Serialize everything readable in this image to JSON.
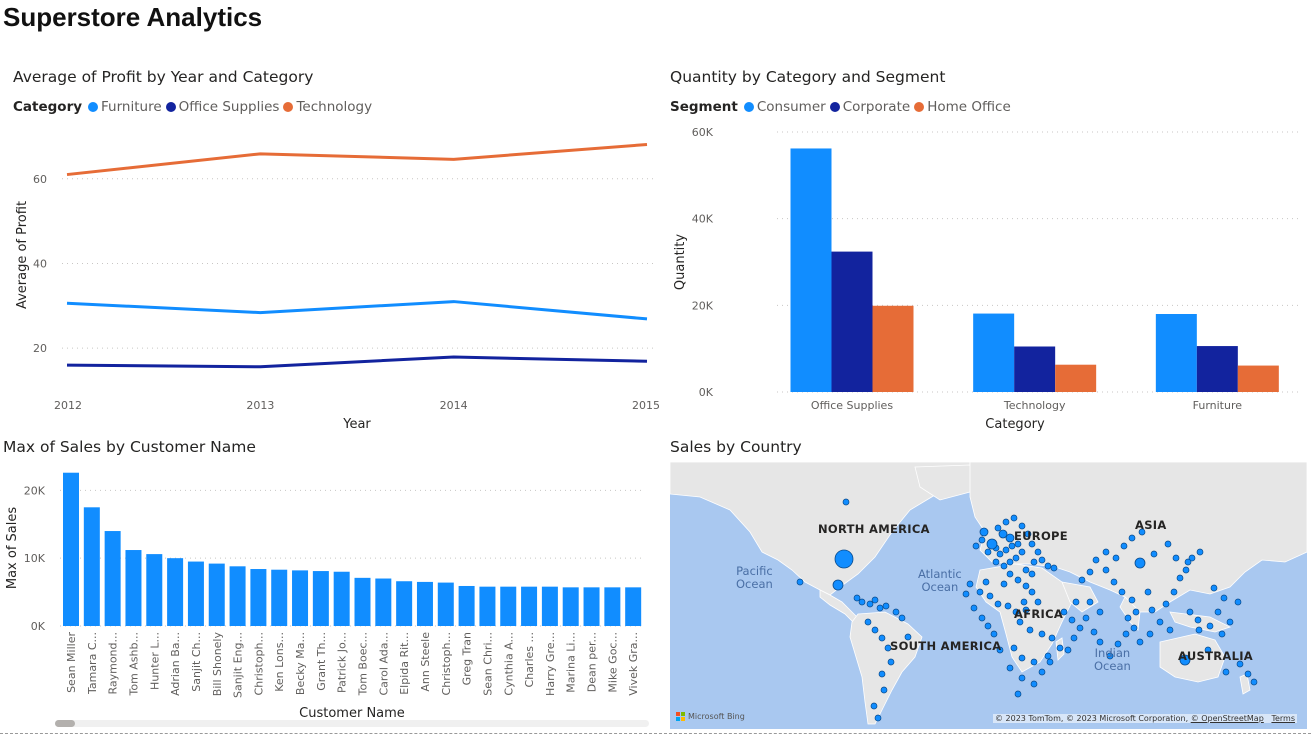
{
  "page": {
    "title": "Superstore Analytics"
  },
  "chart_data": [
    {
      "id": "profit_line",
      "type": "line",
      "title": "Average of Profit by Year and Category",
      "legend_title": "Category",
      "xlabel": "Year",
      "ylabel": "Average of Profit",
      "x": [
        "2012",
        "2013",
        "2014",
        "2015"
      ],
      "ylim": [
        12,
        72
      ],
      "yticks": [
        20,
        40,
        60
      ],
      "grid": true,
      "legend_position": "top-left",
      "series": [
        {
          "name": "Furniture",
          "color": "#118DFF",
          "values": [
            30.6,
            28.4,
            31.0,
            26.9
          ]
        },
        {
          "name": "Office Supplies",
          "color": "#12239E",
          "values": [
            16.0,
            15.6,
            17.9,
            16.9
          ]
        },
        {
          "name": "Technology",
          "color": "#E66C37",
          "values": [
            61.0,
            65.9,
            64.6,
            68.1
          ]
        }
      ]
    },
    {
      "id": "quantity_bar",
      "type": "bar",
      "title": "Quantity by Category and Segment",
      "legend_title": "Segment",
      "xlabel": "Category",
      "ylabel": "Quantity",
      "categories": [
        "Office Supplies",
        "Technology",
        "Furniture"
      ],
      "ylim": [
        0,
        60000
      ],
      "yticks": [
        0,
        20000,
        40000,
        60000
      ],
      "ytick_labels": [
        "0K",
        "20K",
        "40K",
        "60K"
      ],
      "grid": true,
      "legend_position": "top-left",
      "series": [
        {
          "name": "Consumer",
          "color": "#118DFF",
          "values": [
            56200,
            18100,
            18000
          ]
        },
        {
          "name": "Corporate",
          "color": "#12239E",
          "values": [
            32400,
            10500,
            10600
          ]
        },
        {
          "name": "Home Office",
          "color": "#E66C37",
          "values": [
            19900,
            6300,
            6100
          ]
        }
      ]
    },
    {
      "id": "sales_bar",
      "type": "bar",
      "title": "Max of Sales by Customer Name",
      "xlabel": "Customer Name",
      "ylabel": "Max of Sales",
      "ylim": [
        0,
        23000
      ],
      "yticks": [
        0,
        10000,
        20000
      ],
      "ytick_labels": [
        "0K",
        "10K",
        "20K"
      ],
      "grid": true,
      "color": "#118DFF",
      "categories": [
        "Sean Miller",
        "Tamara C...",
        "Raymond...",
        "Tom Ashb...",
        "Hunter L...",
        "Adrian Ba...",
        "Sanjit Ch...",
        "Bill Shonely",
        "Sanjit Eng...",
        "Christoph...",
        "Ken Lons...",
        "Becky Ma...",
        "Grant Th...",
        "Patrick Jo...",
        "Tom Boec...",
        "Carol Ada...",
        "Elpida Rit...",
        "Ann Steele",
        "Christoph...",
        "Greg Tran",
        "Sean Chri...",
        "Cynthia A...",
        "Charles ...",
        "Harry Gre...",
        "Marina Li...",
        "Dean per...",
        "Mike Goc...",
        "Vivek Gra..."
      ],
      "values": [
        22600,
        17500,
        14000,
        11200,
        10600,
        10000,
        9500,
        9200,
        8800,
        8400,
        8300,
        8200,
        8100,
        8000,
        7100,
        7000,
        6600,
        6500,
        6400,
        5900,
        5800,
        5800,
        5800,
        5800,
        5700,
        5700,
        5700,
        5700
      ]
    }
  ],
  "map": {
    "title": "Sales by Country",
    "continents": [
      "NORTH AMERICA",
      "EUROPE",
      "ASIA",
      "AFRICA",
      "SOUTH AMERICA",
      "AUSTRALIA"
    ],
    "oceans": [
      "Pacific\nOcean",
      "Atlantic\nOcean",
      "Indian\nOcean"
    ],
    "attribution": "© 2023 TomTom, © 2023 Microsoft Corporation,",
    "attribution_link": "© OpenStreetMap",
    "terms": "Terms",
    "provider": "Microsoft Bing",
    "bubble_color": "#118DFF",
    "land_color": "#e6e6e6",
    "water_color": "#a9c8f0"
  }
}
